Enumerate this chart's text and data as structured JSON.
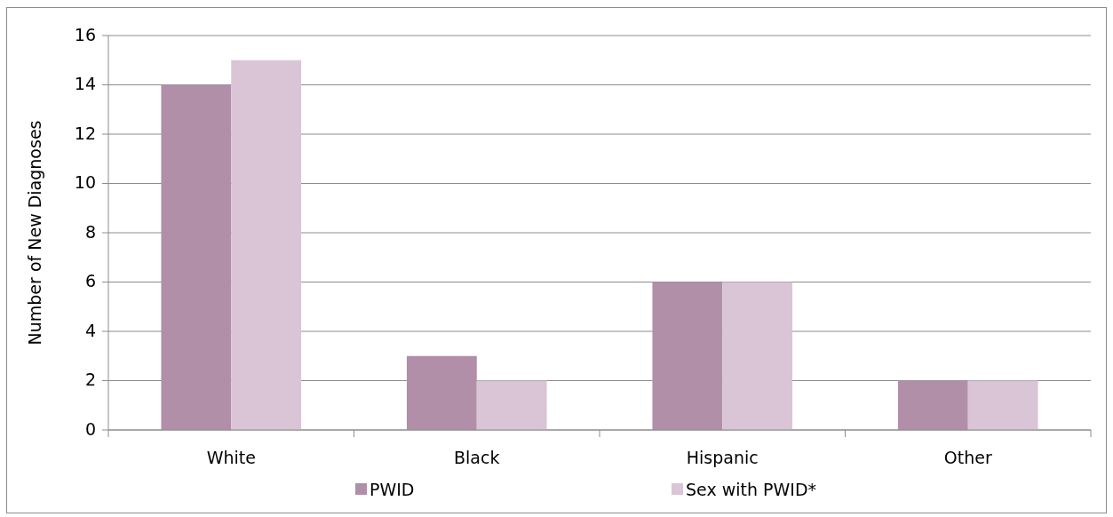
{
  "chart_data": {
    "type": "bar",
    "ylabel": "Number of New Diagnoses",
    "categories": [
      "White",
      "Black",
      "Hispanic",
      "Other"
    ],
    "series": [
      {
        "name": "PWID",
        "color": "#b18fa8",
        "values": [
          14,
          3,
          6,
          2
        ]
      },
      {
        "name": "Sex with PWID*",
        "color": "#d9c5d6",
        "values": [
          15,
          2,
          6,
          2
        ]
      }
    ],
    "ylim": [
      0,
      16
    ],
    "yticks": [
      0,
      2,
      4,
      6,
      8,
      10,
      12,
      14,
      16
    ],
    "grid": "y",
    "legend": "bottom"
  }
}
